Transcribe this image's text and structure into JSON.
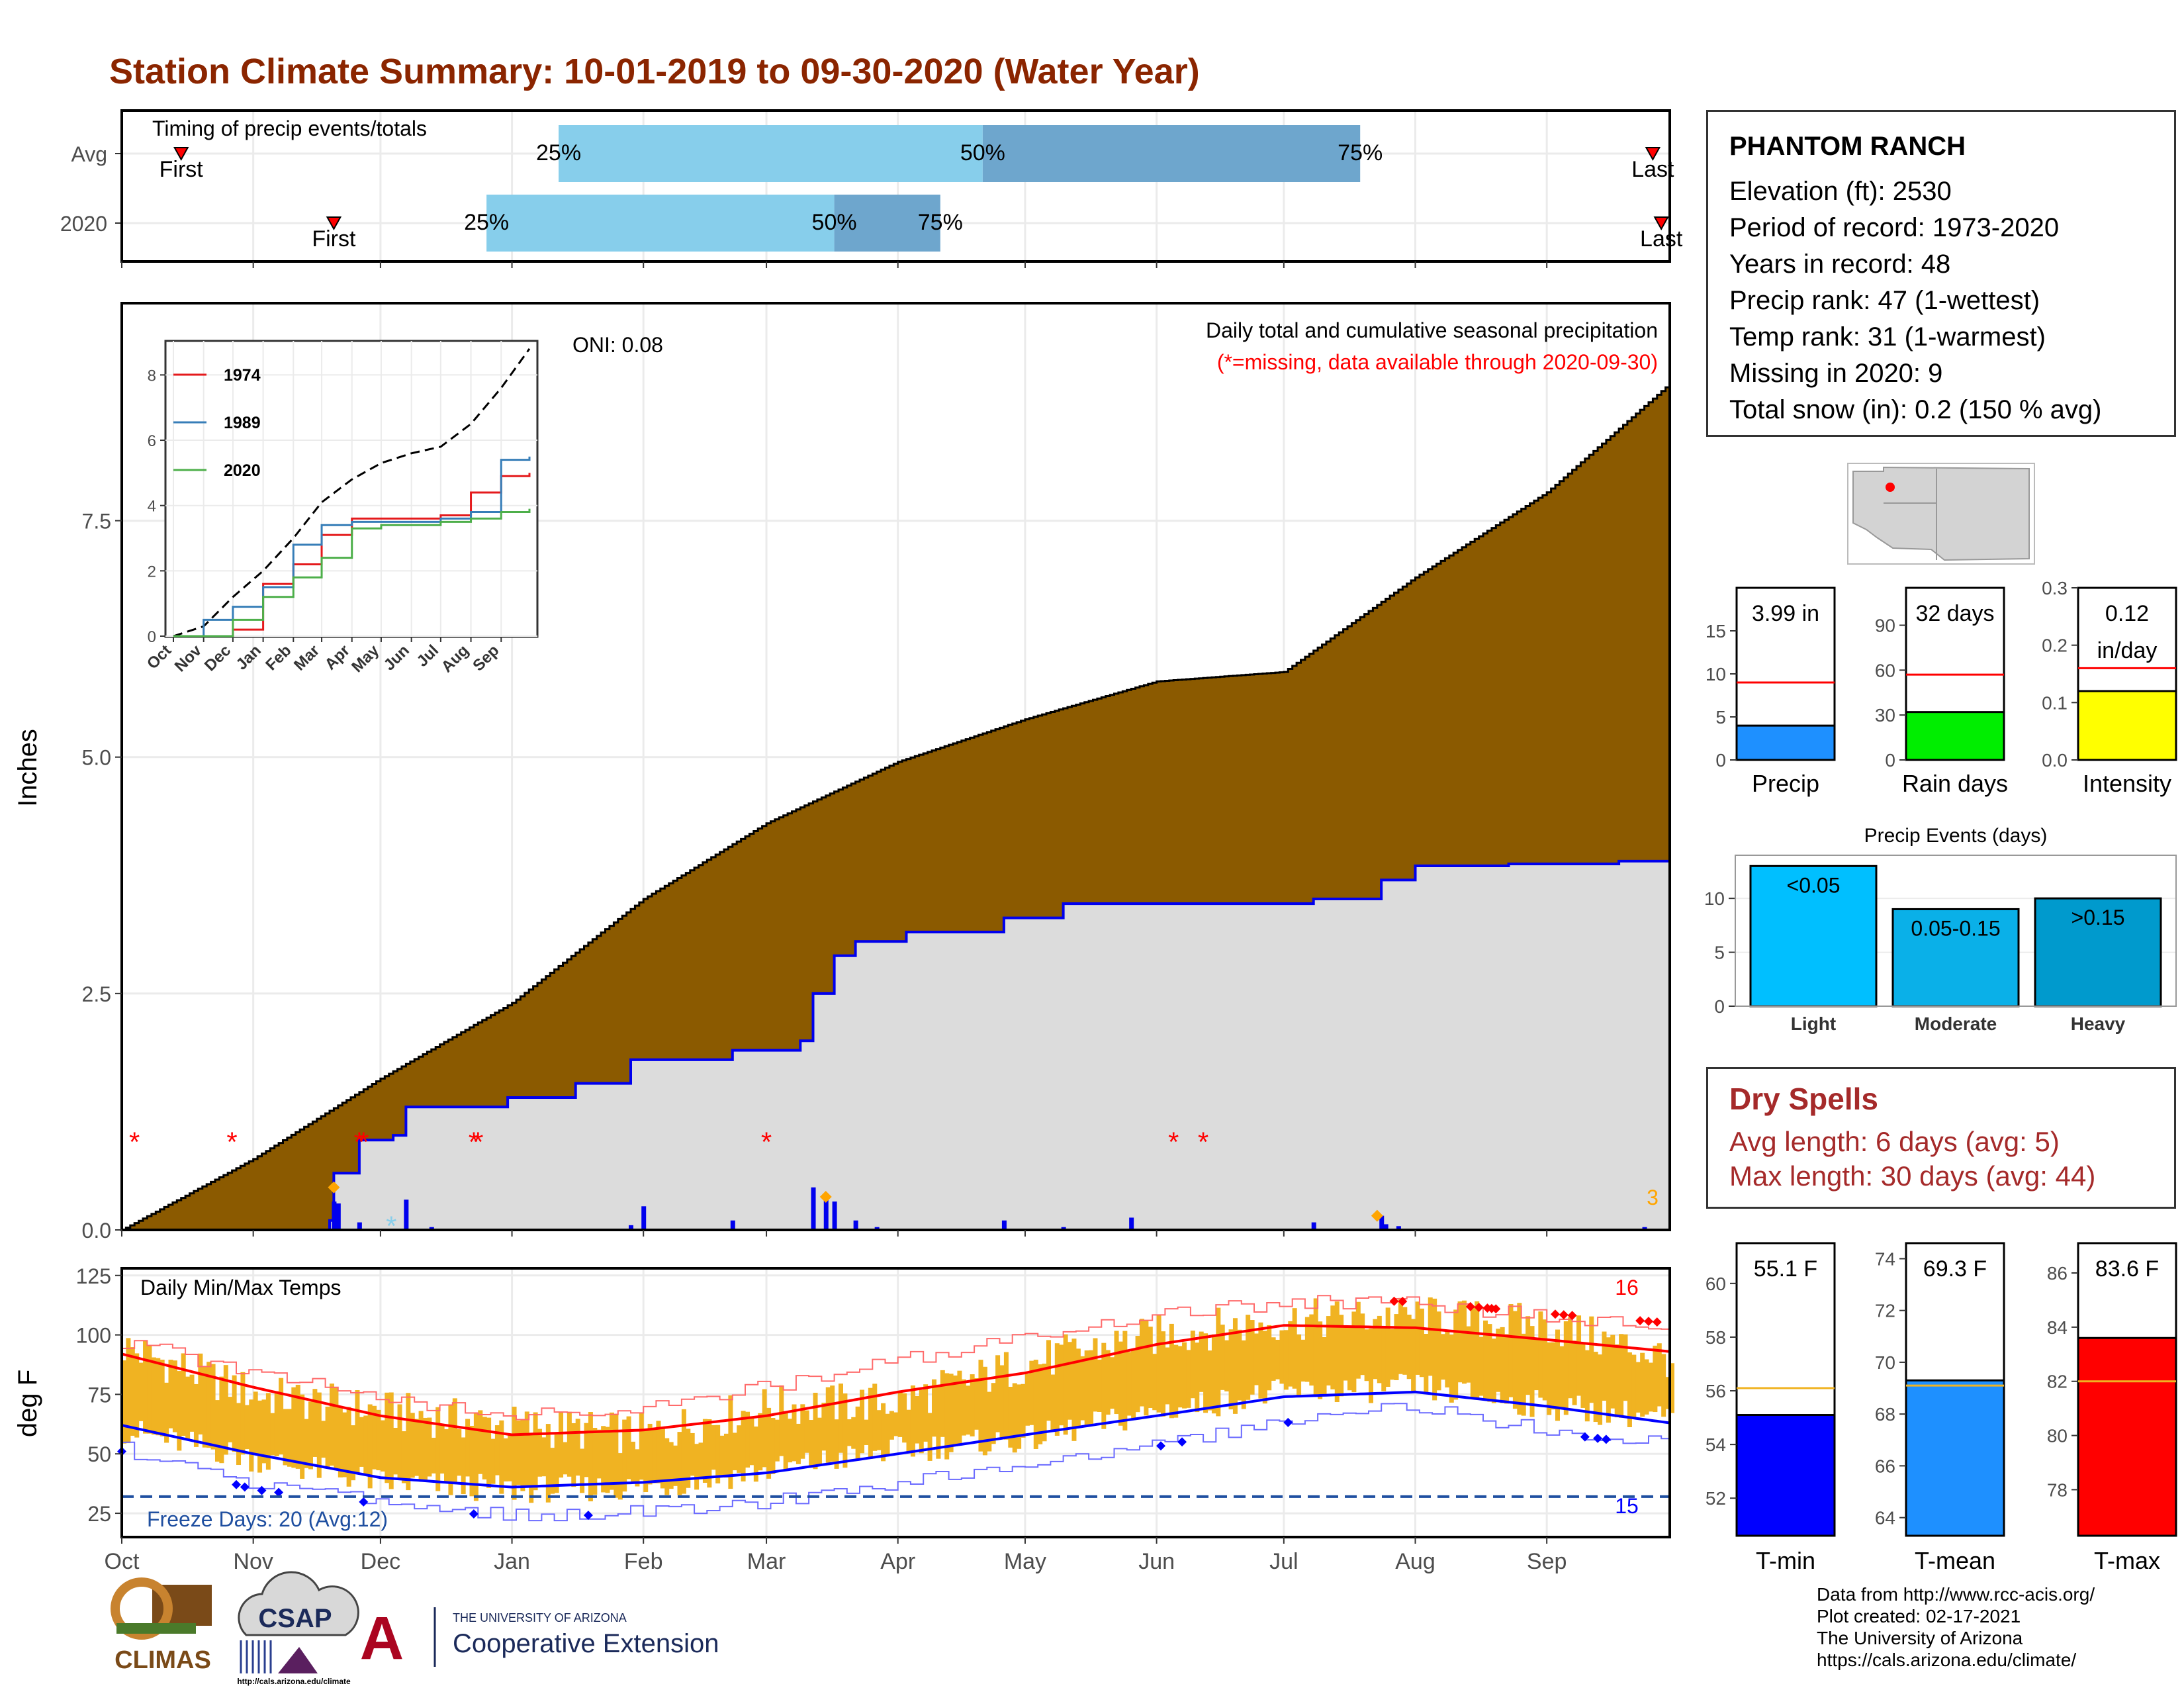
{
  "title": "Station Climate Summary: 10-01-2019 to 09-30-2020 (Water Year)",
  "station": {
    "name": "PHANTOM RANCH",
    "lines": [
      "Elevation (ft): 2530",
      "Period of record: 1973-2020",
      "Years in record: 48",
      "Precip rank: 47 (1-wettest)",
      "Temp rank: 31 (1-warmest)",
      "Missing in 2020: 9",
      "Total snow (in): 0.2 (150 % avg)"
    ]
  },
  "dry_spells": {
    "title": "Dry Spells",
    "avg_line": "Avg length: 6 days (avg: 5)",
    "max_line": "Max length: 30 days (avg: 44)"
  },
  "footer": {
    "lines": [
      "Data from http://www.rcc-acis.org/",
      "Plot created: 02-17-2021",
      "The University of Arizona",
      "https://cals.arizona.edu/climate/"
    ],
    "logos": {
      "climas": "CLIMAS",
      "csap": "CSAP",
      "csap_url": "http://cals.arizona.edu/climate",
      "ua_letter": "A",
      "ua_small": "THE UNIVERSITY OF ARIZONA",
      "ua_big": "Cooperative Extension"
    }
  },
  "colors": {
    "title": "#8b2500",
    "cum_avg": "#8b5a00",
    "cum_2020": "#dcdcdc",
    "line_2020": "#0000ee",
    "q1": "#87ceeb",
    "q2": "#6ea6cd",
    "temp_range": "#f0b322",
    "tmax": "#ff0000",
    "tmin": "#0000ff"
  },
  "chart_data": [
    {
      "type": "range-bar",
      "title": "Timing of precip events/totals",
      "rows": [
        {
          "label": "Avg",
          "first": "First",
          "last": "Last",
          "first_x": "Oct 15",
          "last_x": "Sep 26",
          "q25": "Jan 12",
          "q50": "Apr 21",
          "q75": "Jul 19",
          "q25_label": "25%",
          "q50_label": "50%",
          "q75_label": "75%"
        },
        {
          "label": "2020",
          "first": "First",
          "last": "Last",
          "first_x": "Nov 20",
          "last_x": "Sep 28",
          "q25": "Dec 26",
          "q50": "Mar 17",
          "q75": "Apr 11",
          "q25_label": "25%",
          "q50_label": "50%",
          "q75_label": "75%"
        }
      ]
    },
    {
      "type": "area",
      "title": "Daily total and cumulative seasonal precipitation",
      "subtitle": "(*=missing, data available through 2020-09-30)",
      "oni": "ONI: 0.08",
      "ylabel": "Inches",
      "ylim": [
        0,
        9.8
      ],
      "yticks": [
        "0.0",
        "2.5",
        "5.0",
        "7.5"
      ],
      "xticks": [
        "Oct",
        "Nov",
        "Dec",
        "Jan",
        "Feb",
        "Mar",
        "Apr",
        "May",
        "Jun",
        "Jul",
        "Aug",
        "Sep"
      ],
      "avg_cumulative": {
        "x": [
          "Oct 1",
          "Nov 1",
          "Dec 1",
          "Jan 1",
          "Feb 1",
          "Mar 1",
          "Apr 1",
          "May 1",
          "Jun 1",
          "Jul 1",
          "Aug 1",
          "Sep 1",
          "Sep 30"
        ],
        "y": [
          0,
          0.75,
          1.6,
          2.4,
          3.5,
          4.3,
          4.95,
          5.4,
          5.8,
          5.9,
          6.9,
          7.8,
          8.95
        ]
      },
      "cumulative_2020": {
        "x": [
          "Oct 1",
          "Nov 19",
          "Nov 20",
          "Nov 26",
          "Dec 4",
          "Dec 7",
          "Dec 31",
          "Jan 16",
          "Jan 29",
          "Feb 22",
          "Mar 9",
          "Mar 12",
          "Mar 17",
          "Mar 22",
          "Apr 3",
          "Apr 26",
          "May 10",
          "Jul 8",
          "Jul 23",
          "Jul 24",
          "Aug 1",
          "Aug 23",
          "Sep 18",
          "Sep 30"
        ],
        "y": [
          0,
          0.1,
          0.6,
          0.95,
          1.0,
          1.3,
          1.4,
          1.55,
          1.8,
          1.9,
          2.0,
          2.5,
          2.9,
          3.05,
          3.15,
          3.3,
          3.45,
          3.5,
          3.5,
          3.7,
          3.85,
          3.87,
          3.9,
          4.0
        ]
      },
      "daily_precip": [
        {
          "x": "Nov 20",
          "y": 0.3
        },
        {
          "x": "Nov 21",
          "y": 0.28
        },
        {
          "x": "Nov 26",
          "y": 0.08
        },
        {
          "x": "Dec 7",
          "y": 0.32
        },
        {
          "x": "Dec 13",
          "y": 0.03
        },
        {
          "x": "Jan 29",
          "y": 0.05
        },
        {
          "x": "Feb 1",
          "y": 0.25
        },
        {
          "x": "Feb 22",
          "y": 0.1
        },
        {
          "x": "Mar 12",
          "y": 0.45
        },
        {
          "x": "Mar 15",
          "y": 0.35
        },
        {
          "x": "Mar 17",
          "y": 0.3
        },
        {
          "x": "Mar 22",
          "y": 0.1
        },
        {
          "x": "Mar 27",
          "y": 0.03
        },
        {
          "x": "Apr 26",
          "y": 0.1
        },
        {
          "x": "May 10",
          "y": 0.03
        },
        {
          "x": "May 26",
          "y": 0.13
        },
        {
          "x": "Jul 8",
          "y": 0.08
        },
        {
          "x": "Jul 24",
          "y": 0.15
        },
        {
          "x": "Jul 25",
          "y": 0.06
        },
        {
          "x": "Jul 28",
          "y": 0.04
        },
        {
          "x": "Sep 24",
          "y": 0.03
        }
      ],
      "missing": {
        "marker": "*",
        "x": [
          "Oct 4",
          "Oct 27",
          "Nov 26",
          "Nov 27",
          "Dec 23",
          "Dec 24",
          "Mar 1",
          "Jun 5",
          "Jun 12"
        ],
        "y": 0.97
      },
      "snow_marker": {
        "marker": "*",
        "x": "Dec 2",
        "y": 0.08
      },
      "markers": [
        {
          "x": "Nov 20",
          "y": 0.45
        },
        {
          "x": "Mar 15",
          "y": 0.35
        },
        {
          "x": "Jul 23",
          "y": 0.15
        }
      ],
      "count_label": "3"
    },
    {
      "type": "line",
      "title": "",
      "ylim": [
        0,
        8.9
      ],
      "yticks": [
        "0",
        "2",
        "4",
        "6",
        "8"
      ],
      "xticks": [
        "Oct",
        "Nov",
        "Dec",
        "Jan",
        "Feb",
        "Mar",
        "Apr",
        "May",
        "Jun",
        "Jul",
        "Aug",
        "Sep"
      ],
      "x": [
        "Oct",
        "Nov",
        "Dec",
        "Jan",
        "Feb",
        "Mar",
        "Apr",
        "May",
        "Jun",
        "Jul",
        "Aug",
        "Sep",
        "Sep 30"
      ],
      "series": [
        {
          "name": "",
          "dashed": true,
          "color": "#000000",
          "values": [
            0,
            0.3,
            1.2,
            2.0,
            3.0,
            4.1,
            4.8,
            5.3,
            5.6,
            5.8,
            6.5,
            7.6,
            8.8
          ]
        },
        {
          "name": "1974",
          "color": "#e41a1c",
          "values": [
            0,
            0,
            0.2,
            1.6,
            2.2,
            3.1,
            3.6,
            3.6,
            3.6,
            3.7,
            4.4,
            4.9,
            5.0
          ]
        },
        {
          "name": "1989",
          "color": "#377eb8",
          "values": [
            0,
            0.5,
            0.9,
            1.5,
            2.8,
            3.4,
            3.5,
            3.5,
            3.5,
            3.6,
            3.8,
            5.4,
            5.5
          ]
        },
        {
          "name": "2020",
          "color": "#4daf4a",
          "values": [
            0,
            0,
            0.5,
            1.2,
            1.8,
            2.4,
            3.3,
            3.4,
            3.4,
            3.5,
            3.6,
            3.8,
            3.9
          ]
        }
      ]
    },
    {
      "type": "bar",
      "title": "",
      "panels": [
        {
          "category": "Precip",
          "value": 3.99,
          "label_line1": "3.99 in",
          "label_line2": "",
          "avg": 9.0,
          "ylim": [
            0,
            20
          ],
          "yticks": [
            0,
            5,
            10,
            15
          ],
          "color": "#1e90ff"
        },
        {
          "category": "Rain days",
          "value": 32,
          "label_line1": "32 days",
          "label_line2": "",
          "avg": 57,
          "ylim": [
            0,
            115
          ],
          "yticks": [
            0,
            30,
            60,
            90
          ],
          "color": "#00ee00"
        },
        {
          "category": "Intensity",
          "value": 0.12,
          "label_line1": "0.12",
          "label_line2": "in/day",
          "avg": 0.16,
          "ylim": [
            0,
            0.3
          ],
          "yticks": [
            "0.0",
            "0.1",
            "0.2",
            "0.3"
          ],
          "color": "#ffff00"
        }
      ]
    },
    {
      "type": "bar",
      "title": "Precip Events (days)",
      "categories": [
        "Light",
        "Moderate",
        "Heavy"
      ],
      "values": [
        13,
        9,
        10
      ],
      "labels": [
        "<0.05",
        "0.05-0.15",
        ">0.15"
      ],
      "colors": [
        "#00bfff",
        "#0ab0e8",
        "#009acd"
      ],
      "ylim": [
        0,
        14
      ],
      "yticks": [
        0,
        5,
        10
      ]
    },
    {
      "type": "line",
      "title": "Daily Min/Max Temps",
      "ylabel": "deg F",
      "ylim": [
        15,
        128
      ],
      "yticks": [
        25,
        50,
        75,
        100,
        125
      ],
      "xticks": [
        "Oct",
        "Nov",
        "Dec",
        "Jan",
        "Feb",
        "Mar",
        "Apr",
        "May",
        "Jun",
        "Jul",
        "Aug",
        "Sep"
      ],
      "freeze_label": "Freeze Days: 20 (Avg:12)",
      "freeze_line": 32,
      "count_hot": "16",
      "count_cold": "15",
      "months_x": [
        "Oct",
        "Nov",
        "Dec",
        "Jan",
        "Feb",
        "Mar",
        "Apr",
        "May",
        "Jun",
        "Jul",
        "Aug",
        "Sep",
        "Sep 30"
      ],
      "avg_tmax": [
        92,
        78,
        66,
        58,
        60,
        66,
        76,
        84,
        96,
        104,
        103,
        98,
        93
      ],
      "avg_tmin": [
        62,
        50,
        40,
        36,
        38,
        42,
        50,
        58,
        66,
        74,
        76,
        70,
        63
      ],
      "record_high": [
        97,
        84,
        74,
        66,
        70,
        78,
        90,
        98,
        108,
        114,
        113,
        108,
        104
      ],
      "record_low": [
        52,
        36,
        30,
        24,
        26,
        30,
        38,
        44,
        54,
        64,
        70,
        60,
        54
      ],
      "tmax_2020": [
        95,
        75,
        68,
        62,
        58,
        70,
        72,
        88,
        100,
        106,
        108,
        104,
        90
      ],
      "tmin_2020": [
        60,
        48,
        38,
        35,
        36,
        43,
        52,
        56,
        68,
        76,
        78,
        70,
        65
      ]
    },
    {
      "type": "bar",
      "title": "",
      "panels": [
        {
          "category": "T-min",
          "value": 55.1,
          "label": "55.1 F",
          "avg": 56.1,
          "ylim": [
            50.6,
            61.5
          ],
          "yticks": [
            52,
            54,
            56,
            58,
            60
          ],
          "color": "#0000ff"
        },
        {
          "category": "T-mean",
          "value": 69.3,
          "label": "69.3 F",
          "avg": 69.1,
          "ylim": [
            63.3,
            74.6
          ],
          "yticks": [
            64,
            66,
            68,
            70,
            72,
            74
          ],
          "color": "#1e90ff"
        },
        {
          "category": "T-max",
          "value": 83.6,
          "label": "83.6 F",
          "avg": 82.0,
          "ylim": [
            76.3,
            87.1
          ],
          "yticks": [
            78,
            80,
            82,
            84,
            86
          ],
          "color": "#ff0000"
        }
      ]
    }
  ]
}
